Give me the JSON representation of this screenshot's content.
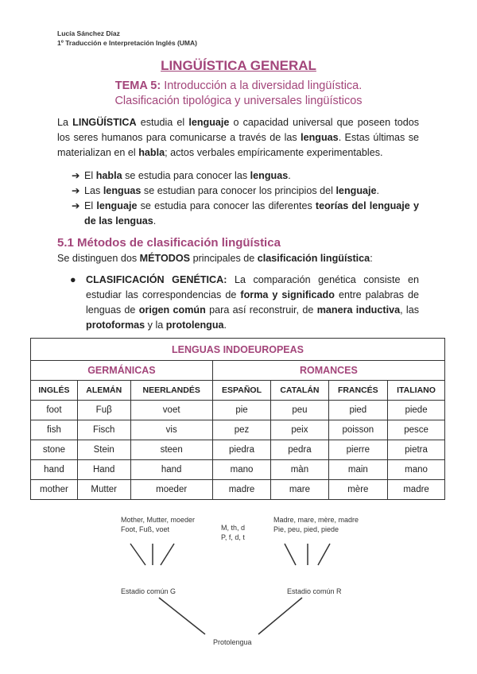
{
  "header": {
    "author": "Lucía Sánchez Díaz",
    "course": "1º Traducción e Interpretación Inglés (UMA)"
  },
  "title": "LINGÜÍSTICA GENERAL",
  "subtitle": {
    "label": "TEMA 5:",
    "line1": " Introducción a la diversidad lingüística.",
    "line2": "Clasificación tipológica y universales lingüísticos"
  },
  "intro": [
    "La ",
    "LINGÜÍSTICA",
    " estudia el ",
    "lenguaje",
    " o capacidad universal que poseen todos los seres humanos para comunicarse a través de las ",
    "lenguas",
    ". Estas últimas se materializan en el ",
    "habla",
    "; actos verbales empíricamente experimentables."
  ],
  "bullets": [
    [
      "El ",
      "habla",
      " se estudia para conocer las ",
      "lenguas",
      "."
    ],
    [
      "Las ",
      "lenguas",
      " se estudian para conocer los principios del ",
      "lenguaje",
      "."
    ],
    [
      "El ",
      "lenguaje",
      " se estudia para conocer las diferentes ",
      "teorías del lenguaje y de las lenguas",
      "."
    ]
  ],
  "section": {
    "title": "5.1 Métodos de clasificación lingüística",
    "intro": [
      "Se distinguen dos ",
      "MÉTODOS",
      " principales de ",
      "clasificación lingüística",
      ":"
    ]
  },
  "genetic": [
    "CLASIFICACIÓN GENÉTICA:",
    " La comparación genética consiste en estudiar las correspondencias de ",
    "forma y significado",
    " entre palabras de lenguas de ",
    "origen común",
    " para así reconstruir, de ",
    "manera inductiva",
    ", las ",
    "protoformas",
    " y la ",
    "protolengua",
    "."
  ],
  "table": {
    "title": "LENGUAS INDOEUROPEAS",
    "groups": [
      "GERMÁNICAS",
      "ROMANCES"
    ],
    "headers": [
      "INGLÉS",
      "ALEMÁN",
      "NEERLANDÉS",
      "ESPAÑOL",
      "CATALÁN",
      "FRANCÉS",
      "ITALIANO"
    ],
    "rows": [
      [
        "foot",
        "Fuβ",
        "voet",
        "pie",
        "peu",
        "pied",
        "piede"
      ],
      [
        "fish",
        "Fisch",
        "vis",
        "pez",
        "peix",
        "poisson",
        "pesce"
      ],
      [
        "stone",
        "Stein",
        "steen",
        "piedra",
        "pedra",
        "pierre",
        "pietra"
      ],
      [
        "hand",
        "Hand",
        "hand",
        "mano",
        "màn",
        "main",
        "mano"
      ],
      [
        "mother",
        "Mutter",
        "moeder",
        "madre",
        "mare",
        "mère",
        "madre"
      ]
    ]
  },
  "diagram": {
    "g1": "Mother, Mutter, moeder",
    "g2": "Foot, Fuß, voet",
    "c1": "M, th, d",
    "c2": "P, f, d, t",
    "r1": "Madre, mare, mère, madre",
    "r2": "Pie, peu, pied, piede",
    "stageG": "Estadio común G",
    "stageR": "Estadio común R",
    "proto": "Protolengua"
  }
}
